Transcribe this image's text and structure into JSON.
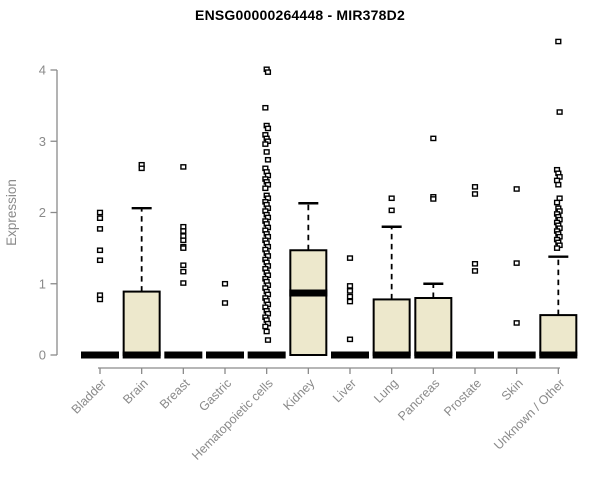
{
  "chart_data": {
    "type": "boxplot",
    "title": "ENSG00000264448 - MIR378D2",
    "ylabel": "Expression",
    "ylim": [
      0,
      4.4
    ],
    "yticks": [
      0,
      1,
      2,
      3,
      4
    ],
    "grid": false,
    "legend": "none",
    "categories": [
      "Bladder",
      "Brain",
      "Breast",
      "Gastric",
      "Hematopoietic cells",
      "Kidney",
      "Liver",
      "Lung",
      "Pancreas",
      "Prostate",
      "Skin",
      "Unknown / Other"
    ],
    "boxes": [
      {
        "category": "Bladder",
        "q1": 0,
        "median": 0,
        "q3": 0,
        "whisker_low": 0,
        "whisker_high": 0,
        "outliers": [
          2.0,
          1.92,
          1.77,
          1.47,
          1.33,
          0.84,
          0.78
        ]
      },
      {
        "category": "Brain",
        "q1": 0,
        "median": 0,
        "q3": 0.89,
        "whisker_low": 0,
        "whisker_high": 2.06,
        "outliers": [
          2.67,
          2.62
        ]
      },
      {
        "category": "Breast",
        "q1": 0,
        "median": 0,
        "q3": 0,
        "whisker_low": 0,
        "whisker_high": 0,
        "outliers": [
          2.64,
          1.8,
          1.74,
          1.67,
          1.61,
          1.52,
          1.5,
          1.26,
          1.17,
          1.01
        ]
      },
      {
        "category": "Gastric",
        "q1": 0,
        "median": 0,
        "q3": 0,
        "whisker_low": 0,
        "whisker_high": 0,
        "outliers": [
          1.0,
          0.73
        ]
      },
      {
        "category": "Hematopoietic cells",
        "q1": 0,
        "median": 0,
        "q3": 0,
        "whisker_low": 0,
        "whisker_high": 0,
        "outliers": [
          4.01,
          3.97,
          3.47,
          3.22,
          3.18,
          3.09,
          3.04,
          3.0,
          2.96,
          2.85,
          2.74,
          2.62,
          2.57,
          2.52,
          2.47,
          2.43,
          2.39,
          2.34,
          2.24,
          2.2,
          2.15,
          2.11,
          2.06,
          2.02,
          1.97,
          1.93,
          1.88,
          1.84,
          1.79,
          1.75,
          1.7,
          1.66,
          1.61,
          1.57,
          1.52,
          1.48,
          1.43,
          1.39,
          1.34,
          1.3,
          1.25,
          1.21,
          1.16,
          1.12,
          1.07,
          1.03,
          0.98,
          0.94,
          0.89,
          0.85,
          0.8,
          0.76,
          0.71,
          0.67,
          0.62,
          0.58,
          0.53,
          0.49,
          0.44,
          0.4,
          0.33,
          0.21
        ]
      },
      {
        "category": "Kidney",
        "q1": 0,
        "median": 0.87,
        "q3": 1.47,
        "whisker_low": 0,
        "whisker_high": 2.13,
        "outliers": []
      },
      {
        "category": "Liver",
        "q1": 0,
        "median": 0,
        "q3": 0,
        "whisker_low": 0,
        "whisker_high": 0,
        "outliers": [
          1.36,
          0.97,
          0.9,
          0.82,
          0.75,
          0.22
        ]
      },
      {
        "category": "Lung",
        "q1": 0,
        "median": 0,
        "q3": 0.78,
        "whisker_low": 0,
        "whisker_high": 1.8,
        "outliers": [
          2.2,
          2.03
        ]
      },
      {
        "category": "Pancreas",
        "q1": 0,
        "median": 0,
        "q3": 0.8,
        "whisker_low": 0,
        "whisker_high": 1.0,
        "outliers": [
          3.04,
          2.22,
          2.19
        ]
      },
      {
        "category": "Prostate",
        "q1": 0,
        "median": 0,
        "q3": 0,
        "whisker_low": 0,
        "whisker_high": 0,
        "outliers": [
          2.36,
          2.26,
          1.28,
          1.18
        ]
      },
      {
        "category": "Skin",
        "q1": 0,
        "median": 0,
        "q3": 0,
        "whisker_low": 0,
        "whisker_high": 0,
        "outliers": [
          2.33,
          1.29,
          0.45
        ]
      },
      {
        "category": "Unknown / Other",
        "q1": 0,
        "median": 0,
        "q3": 0.56,
        "whisker_low": 0,
        "whisker_high": 1.38,
        "outliers": [
          4.4,
          3.41,
          2.6,
          2.55,
          2.5,
          2.45,
          2.39,
          2.2,
          2.14,
          2.06,
          2.02,
          1.98,
          1.94,
          1.9,
          1.86,
          1.82,
          1.78,
          1.74,
          1.7,
          1.66,
          1.62,
          1.58,
          1.54,
          1.5
        ]
      }
    ],
    "colors": {
      "box_fill": "#EDE8CC",
      "box_stroke": "#000000",
      "median": "#000000",
      "outlier_stroke": "#000000",
      "outlier_fill": "#ffffff",
      "axis": "#8A8A8A",
      "title": "#000000",
      "background": "#ffffff"
    }
  }
}
